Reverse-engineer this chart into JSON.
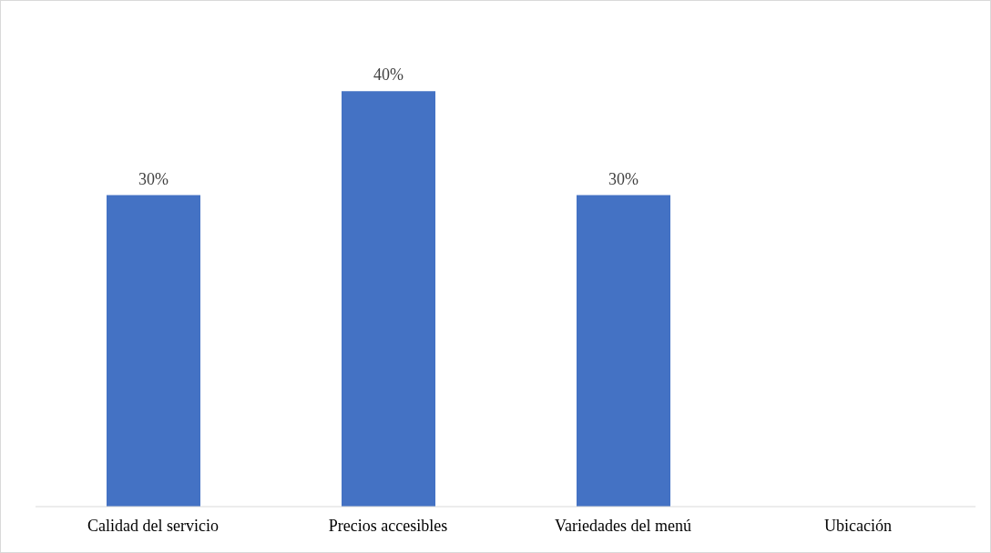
{
  "chart_data": {
    "type": "bar",
    "categories": [
      "Calidad del servicio",
      "Precios accesibles",
      "Variedades del menú",
      "Ubicación"
    ],
    "values": [
      30,
      40,
      30,
      0
    ],
    "value_labels": [
      "30%",
      "40%",
      "30%",
      null
    ],
    "color": "#4472c4",
    "grid": false,
    "legend": false
  }
}
